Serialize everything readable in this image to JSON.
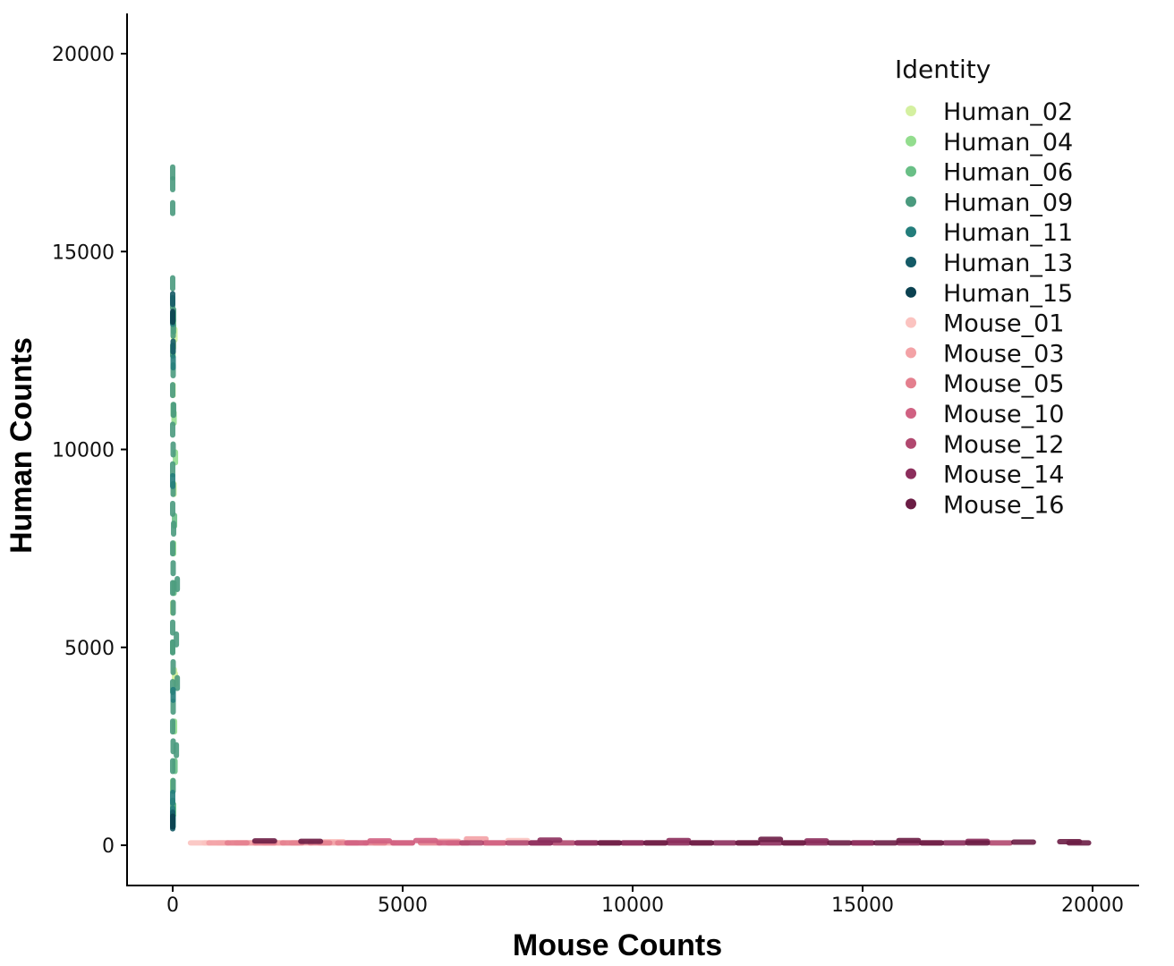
{
  "chart_data": {
    "type": "scatter",
    "title": "",
    "xlabel": "Mouse Counts",
    "ylabel": "Human Counts",
    "xlim": [
      -1000,
      21000
    ],
    "ylim": [
      -1000,
      21000
    ],
    "xticks": [
      0,
      5000,
      10000,
      15000,
      20000
    ],
    "yticks": [
      0,
      5000,
      10000,
      15000,
      20000
    ],
    "grid": false,
    "legend": {
      "title": "Identity",
      "placement": "top-right"
    },
    "series": [
      {
        "name": "Human_02",
        "color": "#d4f0a0",
        "points": [
          [
            20,
            12700
          ],
          [
            40,
            4300
          ],
          [
            60,
            4200
          ],
          [
            10,
            11500
          ],
          [
            30,
            9000
          ],
          [
            0,
            6000
          ],
          [
            50,
            12900
          ]
        ]
      },
      {
        "name": "Human_04",
        "color": "#93dd8e",
        "points": [
          [
            10,
            12500
          ],
          [
            30,
            10800
          ],
          [
            20,
            7500
          ],
          [
            40,
            3000
          ],
          [
            0,
            1500
          ],
          [
            60,
            9800
          ]
        ]
      },
      {
        "name": "Human_06",
        "color": "#69bf86",
        "points": [
          [
            20,
            13100
          ],
          [
            10,
            11000
          ],
          [
            40,
            8200
          ],
          [
            30,
            6500
          ],
          [
            0,
            5000
          ],
          [
            50,
            2000
          ],
          [
            20,
            900
          ]
        ]
      },
      {
        "name": "Human_09",
        "color": "#4a9a7e",
        "points": [
          [
            0,
            17000
          ],
          [
            0,
            16700
          ],
          [
            0,
            16100
          ],
          [
            0,
            14200
          ],
          [
            0,
            13700
          ],
          [
            20,
            13400
          ],
          [
            10,
            13000
          ],
          [
            0,
            12500
          ],
          [
            10,
            12000
          ],
          [
            0,
            11500
          ],
          [
            20,
            11000
          ],
          [
            0,
            10500
          ],
          [
            10,
            10000
          ],
          [
            0,
            9500
          ],
          [
            10,
            9000
          ],
          [
            0,
            8500
          ],
          [
            20,
            8000
          ],
          [
            0,
            7500
          ],
          [
            10,
            7000
          ],
          [
            100,
            6600
          ],
          [
            0,
            6500
          ],
          [
            10,
            6000
          ],
          [
            0,
            5500
          ],
          [
            80,
            5200
          ],
          [
            0,
            5000
          ],
          [
            10,
            4500
          ],
          [
            100,
            4100
          ],
          [
            0,
            4000
          ],
          [
            10,
            3500
          ],
          [
            0,
            3000
          ],
          [
            10,
            2500
          ],
          [
            80,
            2400
          ],
          [
            0,
            2000
          ],
          [
            10,
            1500
          ],
          [
            0,
            1000
          ],
          [
            0,
            700
          ]
        ]
      },
      {
        "name": "Human_11",
        "color": "#237d7b",
        "points": [
          [
            0,
            13300
          ],
          [
            10,
            12200
          ],
          [
            0,
            9200
          ],
          [
            10,
            3800
          ],
          [
            0,
            1200
          ],
          [
            0,
            800
          ],
          [
            10,
            600
          ]
        ]
      },
      {
        "name": "Human_13",
        "color": "#145a66",
        "points": [
          [
            0,
            13800
          ],
          [
            10,
            12600
          ],
          [
            0,
            700
          ],
          [
            0,
            550
          ]
        ]
      },
      {
        "name": "Human_15",
        "color": "#0b4150",
        "points": [
          [
            0,
            13350
          ],
          [
            0,
            600
          ]
        ]
      },
      {
        "name": "Mouse_01",
        "color": "#fbc3c0",
        "points": [
          [
            600,
            60
          ],
          [
            900,
            60
          ],
          [
            1200,
            60
          ],
          [
            1500,
            60
          ],
          [
            1800,
            60
          ],
          [
            2100,
            60
          ],
          [
            2500,
            60
          ],
          [
            3500,
            90
          ],
          [
            7500,
            120
          ]
        ]
      },
      {
        "name": "Mouse_03",
        "color": "#f3a2a6",
        "points": [
          [
            1000,
            60
          ],
          [
            1600,
            60
          ],
          [
            2200,
            60
          ],
          [
            2800,
            60
          ],
          [
            3400,
            60
          ],
          [
            4000,
            60
          ],
          [
            4600,
            60
          ],
          [
            6000,
            100
          ],
          [
            6600,
            160
          ]
        ]
      },
      {
        "name": "Mouse_05",
        "color": "#e47f8e",
        "points": [
          [
            1400,
            60
          ],
          [
            2000,
            60
          ],
          [
            2600,
            60
          ],
          [
            3200,
            60
          ],
          [
            3800,
            60
          ],
          [
            4400,
            60
          ],
          [
            5000,
            60
          ],
          [
            5600,
            60
          ],
          [
            6200,
            60
          ],
          [
            7000,
            60
          ]
        ]
      },
      {
        "name": "Mouse_10",
        "color": "#d06182",
        "points": [
          [
            4000,
            60
          ],
          [
            5000,
            60
          ],
          [
            6000,
            60
          ],
          [
            7000,
            60
          ],
          [
            8000,
            60
          ],
          [
            9000,
            60
          ],
          [
            10000,
            60
          ],
          [
            4500,
            110
          ],
          [
            5500,
            120
          ]
        ]
      },
      {
        "name": "Mouse_12",
        "color": "#b1486f",
        "points": [
          [
            6500,
            60
          ],
          [
            7500,
            60
          ],
          [
            8500,
            60
          ],
          [
            9500,
            60
          ],
          [
            10500,
            60
          ],
          [
            11500,
            60
          ],
          [
            12500,
            60
          ],
          [
            13500,
            60
          ],
          [
            15000,
            60
          ],
          [
            16500,
            60
          ],
          [
            18000,
            60
          ]
        ]
      },
      {
        "name": "Mouse_14",
        "color": "#8c2e5c",
        "points": [
          [
            8000,
            60
          ],
          [
            9000,
            60
          ],
          [
            10000,
            60
          ],
          [
            11000,
            60
          ],
          [
            12000,
            60
          ],
          [
            13000,
            60
          ],
          [
            14000,
            60
          ],
          [
            15000,
            60
          ],
          [
            16000,
            60
          ],
          [
            17000,
            60
          ],
          [
            8200,
            130
          ],
          [
            11000,
            120
          ],
          [
            14000,
            110
          ],
          [
            17500,
            100
          ]
        ]
      },
      {
        "name": "Mouse_16",
        "color": "#6b1d45",
        "points": [
          [
            9500,
            60
          ],
          [
            10500,
            60
          ],
          [
            11500,
            60
          ],
          [
            12500,
            60
          ],
          [
            13500,
            60
          ],
          [
            14500,
            60
          ],
          [
            15500,
            60
          ],
          [
            16500,
            60
          ],
          [
            17500,
            60
          ],
          [
            18500,
            80
          ],
          [
            19500,
            90
          ],
          [
            19700,
            60
          ],
          [
            13000,
            150
          ],
          [
            16000,
            120
          ],
          [
            2000,
            110
          ],
          [
            3000,
            100
          ]
        ]
      }
    ]
  }
}
